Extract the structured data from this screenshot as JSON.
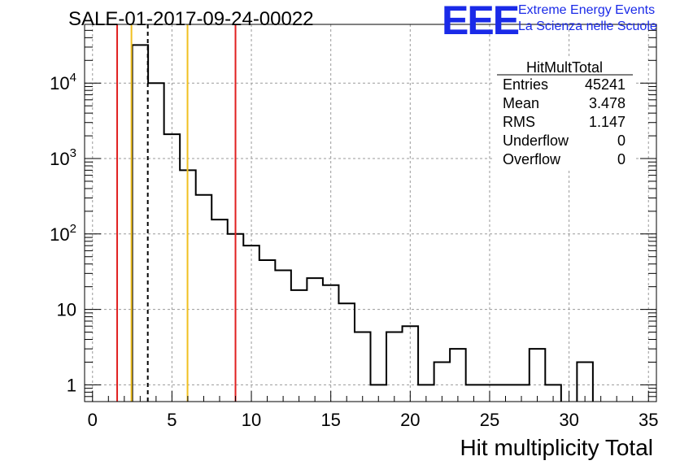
{
  "title": "SALE-01-2017-09-24-00022",
  "logo": {
    "letters": "EEE",
    "line1": "Extreme Energy Events",
    "line2": "La Scienza nelle Scuole",
    "color": "#1a2ae8"
  },
  "stats": {
    "name": "HitMultTotal",
    "rows": [
      {
        "label": "Entries",
        "value": "45241"
      },
      {
        "label": "Mean",
        "value": "3.478"
      },
      {
        "label": "RMS",
        "value": "1.147"
      },
      {
        "label": "Underflow",
        "value": "0"
      },
      {
        "label": "Overflow",
        "value": "0"
      }
    ]
  },
  "chart_data": {
    "type": "histogram",
    "title": "SALE-01-2017-09-24-00022",
    "xlabel": "Hit multiplicity Total",
    "ylabel": "",
    "xlim": [
      -0.5,
      35.5
    ],
    "ylim": [
      0.6,
      60000
    ],
    "yscale": "log",
    "grid": true,
    "xticks": [
      0,
      5,
      10,
      15,
      20,
      25,
      30,
      35
    ],
    "ytick_labels": [
      "1",
      "10",
      "10^2",
      "10^3",
      "10^4"
    ],
    "bin_width": 1,
    "bin_centers": [
      3,
      4,
      5,
      6,
      7,
      8,
      9,
      10,
      11,
      12,
      13,
      14,
      15,
      16,
      17,
      18,
      19,
      20,
      21,
      22,
      23,
      24,
      25,
      26,
      27,
      28,
      29,
      31
    ],
    "counts": [
      32000,
      10000,
      2100,
      700,
      330,
      155,
      100,
      70,
      45,
      33,
      18,
      26,
      21,
      12,
      5,
      1,
      5,
      6,
      1,
      2,
      3,
      1,
      1,
      1,
      1,
      3,
      1,
      2
    ],
    "vertical_lines": [
      {
        "x": 1.55,
        "color": "#e02020",
        "style": "solid"
      },
      {
        "x": 2.45,
        "color": "#f0c020",
        "style": "solid"
      },
      {
        "x": 3.478,
        "color": "#000000",
        "style": "dashed"
      },
      {
        "x": 5.98,
        "color": "#f0c020",
        "style": "solid"
      },
      {
        "x": 9.0,
        "color": "#e02020",
        "style": "solid"
      }
    ]
  }
}
